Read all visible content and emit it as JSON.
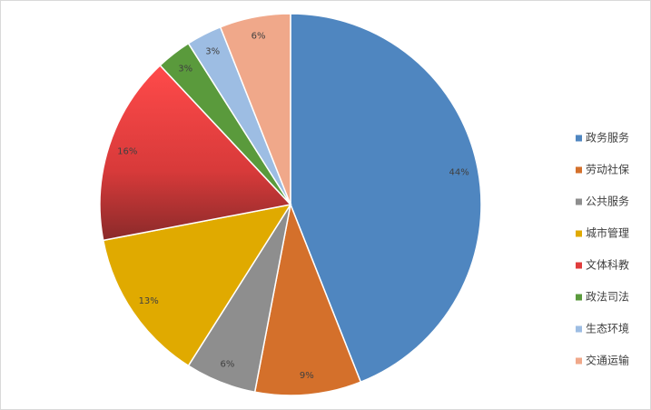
{
  "chart_data": {
    "type": "pie",
    "categories": [
      "政务服务",
      "劳动社保",
      "公共服务",
      "城市管理",
      "文体科教",
      "政法司法",
      "生态环境",
      "交通运输"
    ],
    "values": [
      44,
      9,
      6,
      13,
      16,
      3,
      3,
      6
    ],
    "value_labels": [
      "44%",
      "9%",
      "6%",
      "13%",
      "16%",
      "3%",
      "3%",
      "6%"
    ],
    "colors": [
      "#4f86c0",
      "#d4702b",
      "#8e8e8e",
      "#e0aa00",
      "#e03c3c",
      "#5a9a3c",
      "#9dbde3",
      "#f0a88a"
    ],
    "legend": "right"
  }
}
